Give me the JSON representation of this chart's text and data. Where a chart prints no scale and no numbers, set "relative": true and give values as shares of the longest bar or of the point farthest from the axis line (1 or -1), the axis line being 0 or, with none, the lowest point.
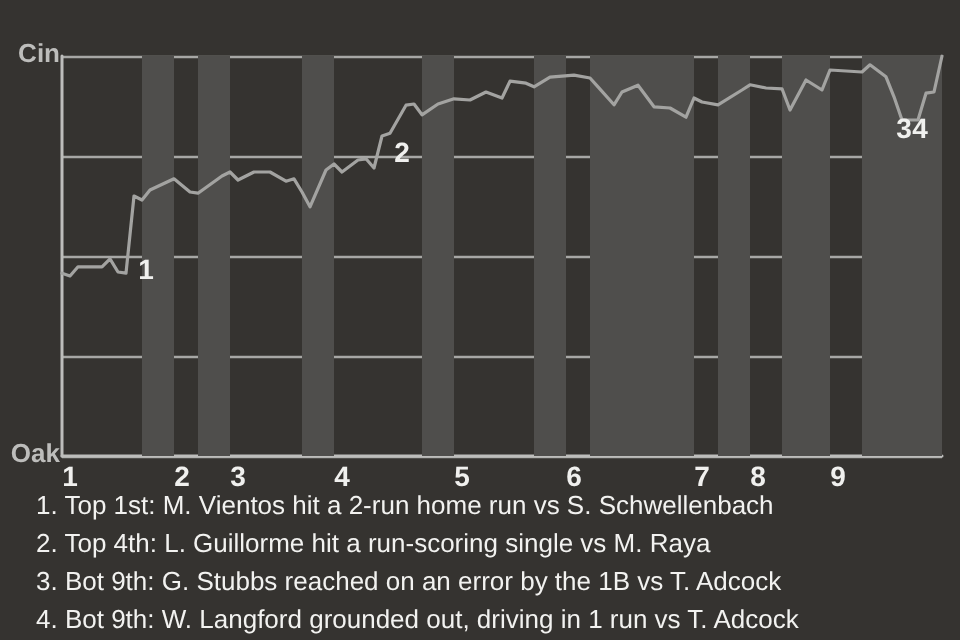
{
  "chart_data": {
    "type": "line",
    "relative": true,
    "categories": [
      null,
      "1",
      null,
      null,
      null,
      null,
      null,
      null,
      null,
      null,
      null,
      null,
      null,
      null,
      null,
      "2",
      null,
      null,
      null,
      null,
      null,
      null,
      "3",
      null,
      null,
      null,
      null,
      null,
      null,
      null,
      null,
      null,
      null,
      null,
      null,
      "4",
      null,
      null,
      null,
      null,
      null,
      null,
      null,
      null,
      null,
      null,
      null,
      null,
      null,
      null,
      "5",
      null,
      null,
      null,
      null,
      null,
      null,
      null,
      null,
      null,
      null,
      null,
      null,
      null,
      "6",
      null,
      null,
      null,
      null,
      null,
      null,
      null,
      null,
      null,
      null,
      null,
      null,
      null,
      null,
      null,
      "7",
      null,
      null,
      null,
      null,
      null,
      null,
      "8",
      null,
      null,
      null,
      null,
      null,
      null,
      null,
      null,
      null,
      "9",
      null,
      null,
      null,
      null,
      null,
      null,
      null,
      null,
      null,
      null,
      null,
      null,
      null
    ],
    "series": [
      {
        "color": "#a3a3a1",
        "values": [
          0.457,
          0.45,
          0.473,
          null,
          null,
          0.473,
          0.493,
          0.46,
          0.457,
          0.65,
          0.64,
          0.665,
          null,
          null,
          0.693,
          null,
          0.66,
          0.657,
          null,
          null,
          0.7,
          0.71,
          0.69,
          null,
          0.71,
          null,
          0.71,
          null,
          0.687,
          0.693,
          0.66,
          0.623,
          null,
          0.715,
          0.73,
          0.71,
          null,
          0.74,
          0.743,
          0.72,
          0.8,
          0.807,
          null,
          0.877,
          0.88,
          0.853,
          null,
          0.88,
          null,
          0.893,
          null,
          0.89,
          null,
          0.91,
          null,
          0.895,
          0.937,
          null,
          0.932,
          0.923,
          null,
          0.947,
          null,
          null,
          0.952,
          null,
          0.945,
          0.923,
          null,
          0.878,
          0.91,
          null,
          0.927,
          null,
          0.873,
          null,
          0.87,
          null,
          0.847,
          0.895,
          0.885,
          null,
          0.878,
          null,
          null,
          0.915,
          0.928,
          null,
          0.92,
          null,
          0.918,
          0.865,
          null,
          0.94,
          null,
          0.915,
          0.965,
          null,
          null,
          null,
          0.96,
          0.978,
          null,
          0.948,
          0.898,
          0.84,
          null,
          0.84,
          0.907,
          0.91,
          1
        ]
      }
    ],
    "grid": "y",
    "annotations": [
      "Cin",
      "Oak",
      "1",
      "2",
      "3",
      "4",
      "1. Top 1st: M. Vientos hit a 2-run home run vs S. Schwellenbach",
      "2. Top 4th: L. Guillorme hit a run-scoring single vs M. Raya",
      "3. Bot 9th: G. Stubbs reached on an error by the 1B vs T. Adcock",
      "4. Bot 9th: W. Langford grounded out, driving in 1 run vs T. Adcock"
    ]
  }
}
